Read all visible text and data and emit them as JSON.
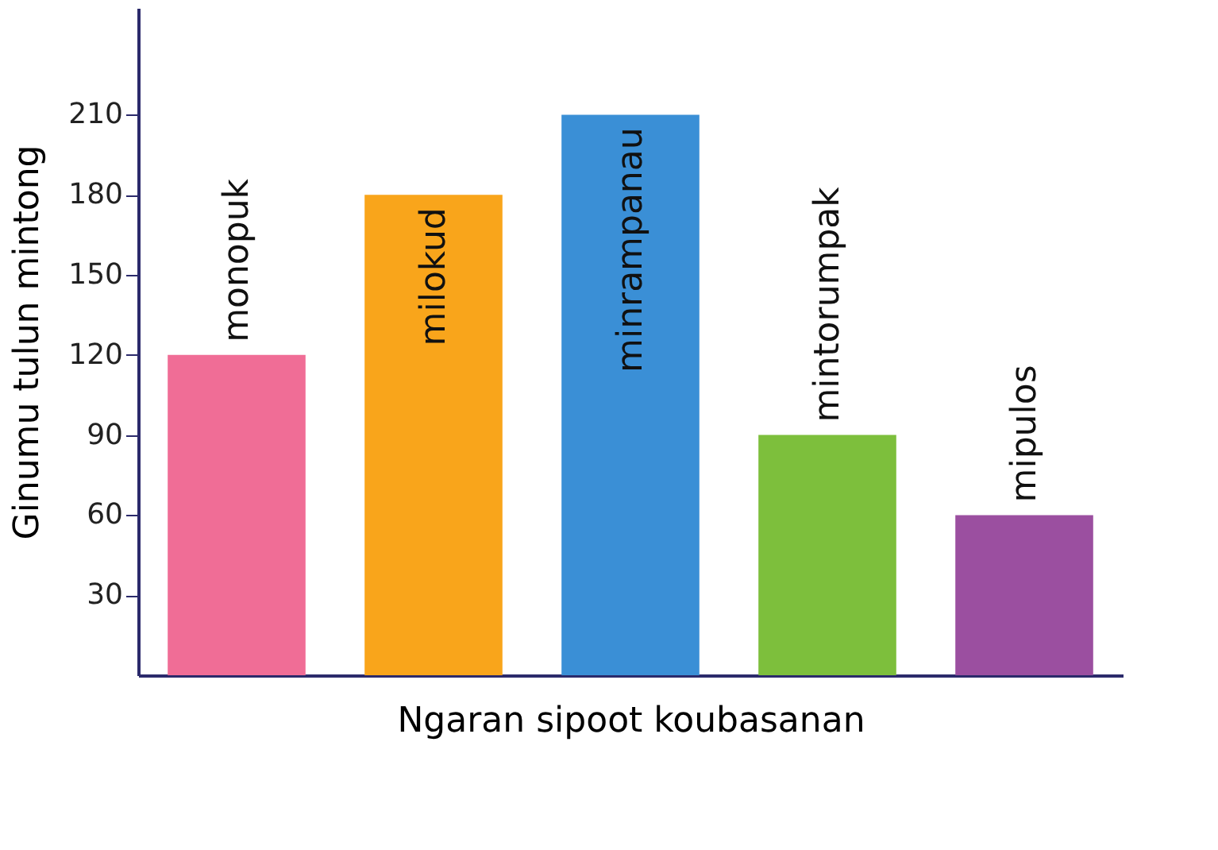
{
  "chart_data": {
    "type": "bar",
    "categories": [
      "monopuk",
      "milokud",
      "minrampanau",
      "mintorumpak",
      "mipulos"
    ],
    "values": [
      120,
      180,
      210,
      90,
      60
    ],
    "colors": [
      "#f06d96",
      "#f9a51b",
      "#3a8fd6",
      "#7dbf3c",
      "#9b4fa0"
    ],
    "xlabel": "Ngaran sipoot koubasanan",
    "ylabel": "Ginumu tulun mintong",
    "ylim": [
      0,
      250
    ],
    "yticks": [
      30,
      60,
      90,
      120,
      150,
      180,
      210
    ],
    "grid": false,
    "legend": false
  }
}
